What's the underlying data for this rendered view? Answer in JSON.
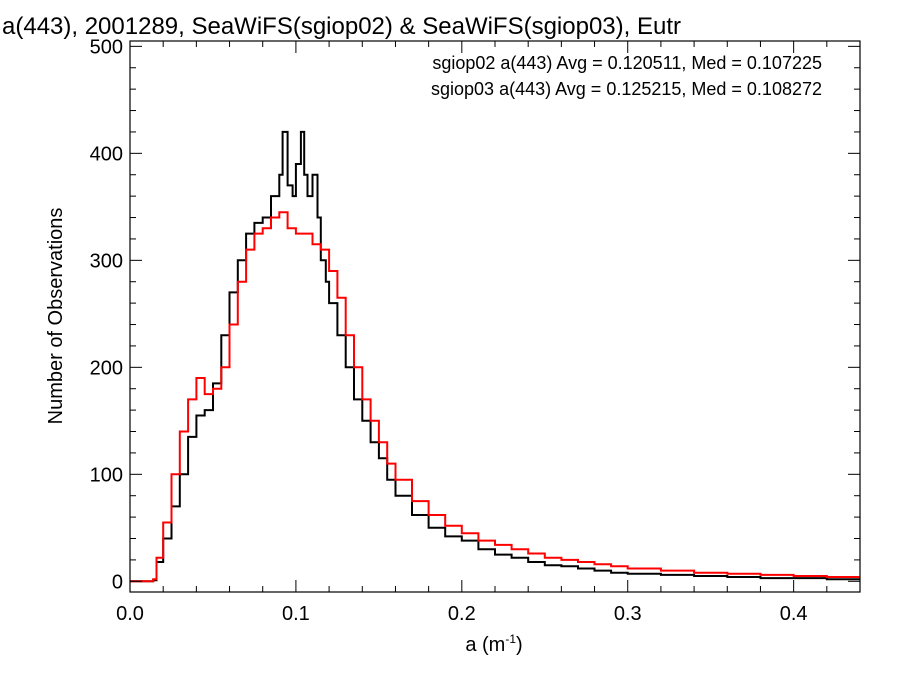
{
  "chart_data": {
    "type": "line",
    "title": "a(443), 2001289, SeaWiFS(sgiop02) & SeaWiFS(sgiop03), Eutr",
    "xlabel_base": "a (m",
    "xlabel_sup": "-1",
    "xlabel_close": ")",
    "ylabel": "Number of Observations",
    "xlim": [
      0.0,
      0.44
    ],
    "ylim": [
      -10,
      505
    ],
    "xticks": [
      0.0,
      0.1,
      0.2,
      0.3,
      0.4
    ],
    "xtick_labels": [
      "0.0",
      "0.1",
      "0.2",
      "0.3",
      "0.4"
    ],
    "yticks": [
      0,
      100,
      200,
      300,
      400,
      500
    ],
    "ytick_labels": [
      "0",
      "100",
      "200",
      "300",
      "400",
      "500"
    ],
    "style": "step",
    "series": [
      {
        "name": "sgiop02",
        "color": "#000000",
        "legend_text": "sgiop02 a(443) Avg = 0.120511, Med = 0.107225",
        "x": [
          0.0,
          0.01,
          0.014,
          0.016,
          0.02,
          0.025,
          0.03,
          0.035,
          0.04,
          0.045,
          0.05,
          0.055,
          0.06,
          0.065,
          0.07,
          0.075,
          0.08,
          0.085,
          0.09,
          0.092,
          0.095,
          0.098,
          0.1,
          0.103,
          0.105,
          0.107,
          0.11,
          0.113,
          0.115,
          0.118,
          0.12,
          0.125,
          0.13,
          0.135,
          0.14,
          0.145,
          0.15,
          0.155,
          0.16,
          0.17,
          0.18,
          0.19,
          0.2,
          0.21,
          0.22,
          0.23,
          0.24,
          0.25,
          0.26,
          0.27,
          0.28,
          0.29,
          0.3,
          0.32,
          0.34,
          0.36,
          0.38,
          0.4,
          0.42,
          0.44
        ],
        "y": [
          0,
          0,
          1,
          18,
          40,
          70,
          100,
          135,
          155,
          160,
          185,
          230,
          270,
          300,
          325,
          335,
          340,
          360,
          380,
          420,
          370,
          360,
          390,
          420,
          380,
          360,
          380,
          340,
          300,
          280,
          260,
          230,
          200,
          170,
          150,
          130,
          115,
          95,
          80,
          62,
          50,
          42,
          38,
          30,
          25,
          22,
          18,
          15,
          14,
          12,
          10,
          8,
          7,
          6,
          5,
          4,
          3,
          3,
          2,
          2
        ]
      },
      {
        "name": "sgiop03",
        "color": "#ff0000",
        "legend_text": "sgiop03 a(443) Avg = 0.125215, Med = 0.108272",
        "x": [
          0.0,
          0.01,
          0.014,
          0.016,
          0.02,
          0.025,
          0.03,
          0.035,
          0.04,
          0.045,
          0.05,
          0.055,
          0.06,
          0.065,
          0.07,
          0.075,
          0.08,
          0.085,
          0.09,
          0.095,
          0.1,
          0.105,
          0.11,
          0.115,
          0.12,
          0.125,
          0.13,
          0.135,
          0.14,
          0.145,
          0.15,
          0.155,
          0.16,
          0.17,
          0.18,
          0.19,
          0.2,
          0.21,
          0.22,
          0.23,
          0.24,
          0.25,
          0.26,
          0.27,
          0.28,
          0.29,
          0.3,
          0.32,
          0.34,
          0.36,
          0.38,
          0.4,
          0.42,
          0.44
        ],
        "y": [
          0,
          0,
          2,
          22,
          55,
          100,
          140,
          170,
          190,
          175,
          180,
          200,
          240,
          280,
          310,
          325,
          330,
          340,
          345,
          330,
          325,
          325,
          315,
          310,
          290,
          265,
          230,
          200,
          170,
          150,
          130,
          110,
          95,
          75,
          62,
          52,
          45,
          38,
          34,
          30,
          26,
          22,
          20,
          18,
          16,
          14,
          12,
          10,
          8,
          7,
          6,
          5,
          4,
          4
        ]
      }
    ]
  }
}
